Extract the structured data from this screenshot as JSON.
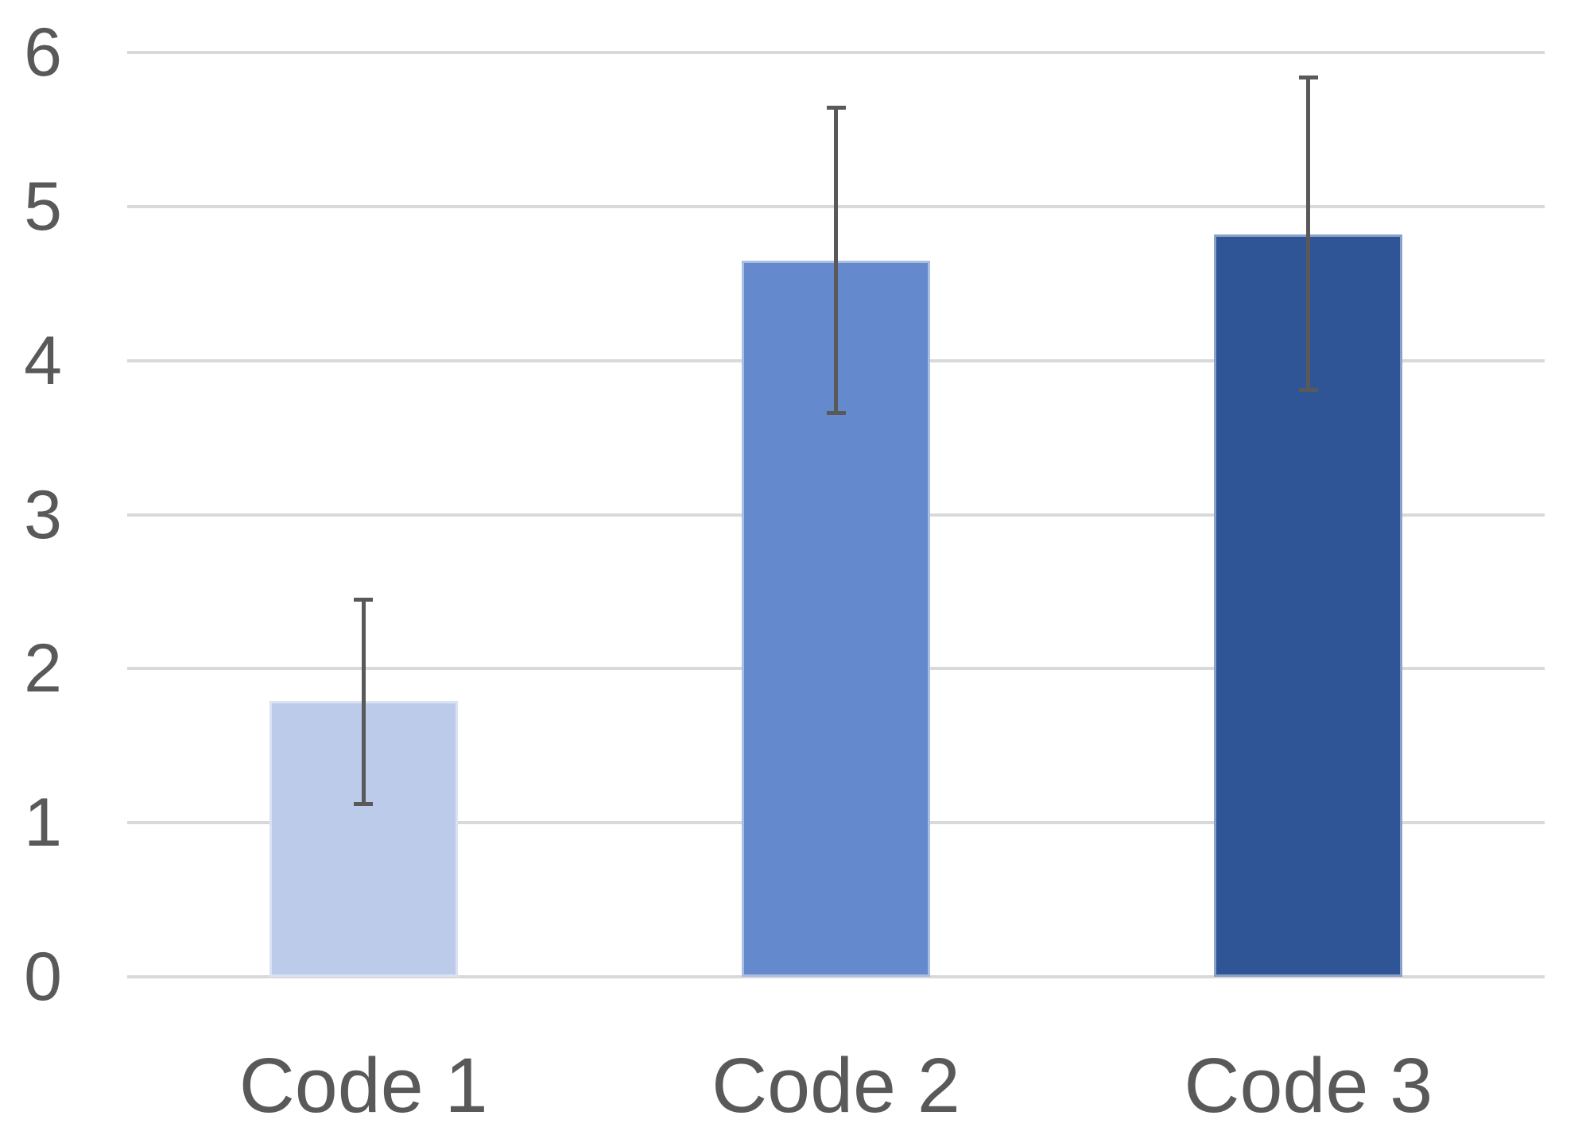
{
  "chart_data": {
    "type": "bar",
    "title": "",
    "xlabel": "",
    "ylabel": "",
    "categories": [
      "Code 1",
      "Code 2",
      "Code 3"
    ],
    "values": [
      1.79,
      4.65,
      4.82
    ],
    "error_low": [
      1.12,
      3.66,
      3.81
    ],
    "error_high": [
      2.45,
      5.64,
      5.84
    ],
    "ylim": [
      0,
      6
    ],
    "yticks": [
      0,
      1,
      2,
      3,
      4,
      5,
      6
    ],
    "grid": true,
    "legend": false,
    "bar_colors": [
      "#BCCBE9",
      "#6589CD",
      "#2F5597"
    ],
    "gridline_color": "#D9D9D9",
    "error_bar_color": "#595959",
    "tick_label_color": "#595959"
  }
}
